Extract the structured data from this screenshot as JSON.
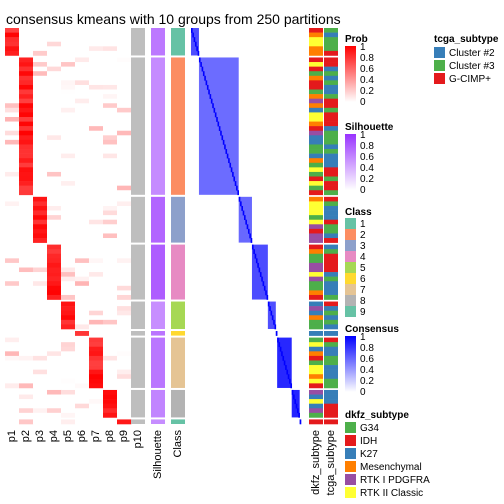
{
  "chart_data": {
    "type": "heatmap",
    "title": "consensus kmeans with 10 groups from 250 partitions",
    "prob_columns": [
      "p1",
      "p2",
      "p3",
      "p4",
      "p5",
      "p6",
      "p7",
      "p8",
      "p9",
      "p10"
    ],
    "annotation_columns": [
      "Silhouette",
      "Class"
    ],
    "right_annotation_columns": [
      "dkfz_subtype",
      "tcga_subtype"
    ],
    "class_colors": {
      "1": "#66C2A5",
      "2": "#FC8D62",
      "3": "#8DA0CB",
      "4": "#E78AC3",
      "5": "#A6D854",
      "6": "#FFD92F",
      "7": "#E5C494",
      "8": "#B3B3B3",
      "9": "#66C2A5"
    },
    "groups": [
      {
        "cls": "1",
        "n": 6,
        "prob_col": 0
      },
      {
        "cls": "2",
        "n": 30,
        "prob_col": 1
      },
      {
        "cls": "3",
        "n": 10,
        "prob_col": 2
      },
      {
        "cls": "4",
        "n": 12,
        "prob_col": 3
      },
      {
        "cls": "5",
        "n": 6,
        "prob_col": 4
      },
      {
        "cls": "6",
        "n": 1,
        "prob_col": 5
      },
      {
        "cls": "7",
        "n": 11,
        "prob_col": 6
      },
      {
        "cls": "8",
        "n": 6,
        "prob_col": 7
      },
      {
        "cls": "9",
        "n": 1,
        "prob_col": 8
      }
    ],
    "legends": {
      "tcga": {
        "title": "tcga_subtype",
        "items": [
          {
            "label": "Cluster #2",
            "color": "#377EB8"
          },
          {
            "label": "Cluster #3",
            "color": "#4DAF4A"
          },
          {
            "label": "G-CIMP+",
            "color": "#E41A1C"
          }
        ]
      },
      "prob": {
        "title": "Prob",
        "ticks": [
          "1",
          "0.8",
          "0.6",
          "0.4",
          "0.2",
          "0"
        ],
        "low": "#FFFFFF",
        "high": "#FF0000"
      },
      "silhouette": {
        "title": "Silhouette",
        "ticks": [
          "1",
          "0.8",
          "0.6",
          "0.4",
          "0.2",
          "0"
        ],
        "low": "#FFFFFF",
        "high": "#9933FF"
      },
      "class": {
        "title": "Class",
        "items": [
          "1",
          "2",
          "3",
          "4",
          "5",
          "6",
          "7",
          "8",
          "9"
        ]
      },
      "consensus": {
        "title": "Consensus",
        "ticks": [
          "1",
          "0.8",
          "0.6",
          "0.4",
          "0.2",
          "0"
        ],
        "low": "#FFFFFF",
        "high": "#0000FF"
      },
      "dkfz": {
        "title": "dkfz_subtype",
        "items": [
          {
            "label": "G34",
            "color": "#4DAF4A"
          },
          {
            "label": "IDH",
            "color": "#E41A1C"
          },
          {
            "label": "K27",
            "color": "#377EB8"
          },
          {
            "label": "Mesenchymal",
            "color": "#FF7F00"
          },
          {
            "label": "RTK I PDGFRA",
            "color": "#984EA3"
          },
          {
            "label": "RTK II Classic",
            "color": "#FFFF33"
          }
        ]
      }
    }
  }
}
